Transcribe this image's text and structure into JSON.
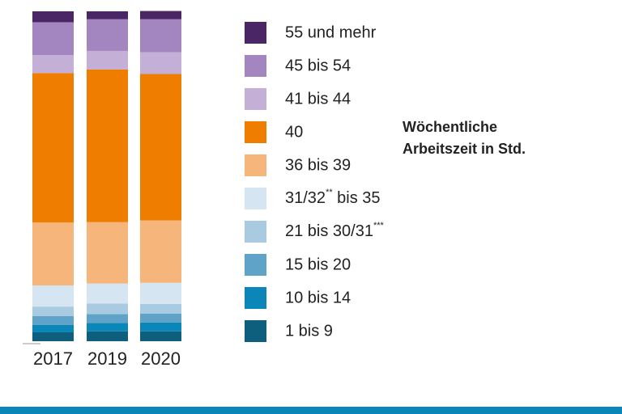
{
  "chart_data": {
    "type": "stacked_bar",
    "categories": [
      "2017",
      "2019",
      "2020"
    ],
    "ylim": [
      0,
      100
    ],
    "legend_title": [
      "Wöchentliche",
      "Arbeitszeit in Std."
    ],
    "series": [
      {
        "name": "1 bis 9",
        "color": "#0e5f7d",
        "values": [
          2.7,
          3.0,
          3.0
        ]
      },
      {
        "name": "10 bis 14",
        "color": "#0a86b8",
        "values": [
          2.2,
          2.5,
          2.7
        ]
      },
      {
        "name": "15 bis 20",
        "color": "#5fa3c9",
        "values": [
          2.7,
          2.7,
          2.7
        ]
      },
      {
        "name": "21 bis 30/31***",
        "color": "#a9cbe1",
        "values": [
          2.9,
          3.2,
          2.9
        ]
      },
      {
        "name": "31/32** bis 35",
        "color": "#d5e6f2",
        "values": [
          6.4,
          6.1,
          6.4
        ]
      },
      {
        "name": "36 bis 39",
        "color": "#f6b57b",
        "values": [
          19.1,
          18.6,
          18.9
        ]
      },
      {
        "name": "40",
        "color": "#ef7d00",
        "values": [
          45.3,
          46.3,
          44.4
        ]
      },
      {
        "name": "41 bis 44",
        "color": "#c4afd7",
        "values": [
          5.4,
          5.6,
          6.6
        ]
      },
      {
        "name": "45 bis 54",
        "color": "#a385bf",
        "values": [
          10.0,
          9.6,
          10.0
        ]
      },
      {
        "name": "55 und mehr",
        "color": "#4b2667",
        "values": [
          3.3,
          2.4,
          2.5
        ]
      }
    ]
  }
}
